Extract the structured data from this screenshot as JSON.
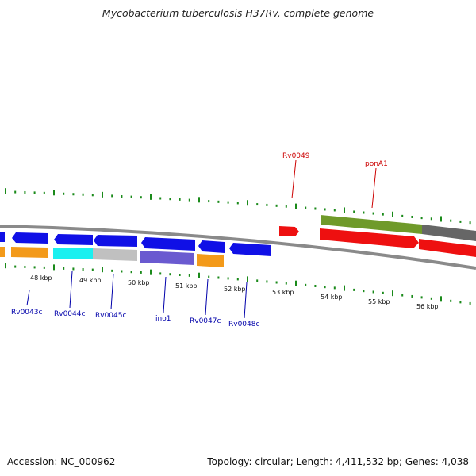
{
  "title": "Mycobacterium tuberculosis H37Rv, complete genome",
  "footer": {
    "accession": "Accession: NC_000962",
    "summary": "Topology: circular; Length: 4,411,532 bp; Genes: 4,038"
  },
  "colors": {
    "tick": "#1a8a1a",
    "backbone": "#8a8a8a",
    "blue": "#1010e6",
    "orange": "#f39a1a",
    "cyan": "#19f0f0",
    "gray": "#c0c0c0",
    "purple": "#6a5ad0",
    "red": "#ee1010",
    "olive": "#6f9a2a",
    "darkgray": "#666666",
    "label_blue": "#0000aa",
    "label_red": "#cc0000"
  },
  "kbp_labels": [
    "48 kbp",
    "49 kbp",
    "50 kbp",
    "51 kbp",
    "52 kbp",
    "53 kbp",
    "54 kbp",
    "55 kbp",
    "56 kbp"
  ],
  "gene_labels": {
    "Rv0043c": "Rv0043c",
    "Rv0044c": "Rv0044c",
    "Rv0045c": "Rv0045c",
    "ino1": "ino1",
    "Rv0047c": "Rv0047c",
    "Rv0048c": "Rv0048c",
    "Rv0049": "Rv0049",
    "ponA1": "ponA1"
  }
}
